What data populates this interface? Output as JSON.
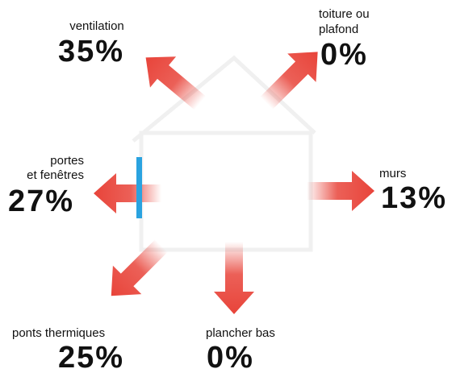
{
  "nodes": [
    {
      "label": [
        "ventilation"
      ],
      "value": "35%"
    },
    {
      "label": [
        "toiture ou",
        "plafond"
      ],
      "value": "0%"
    },
    {
      "label": [
        "portes",
        "et fenêtres"
      ],
      "value": "27%"
    },
    {
      "label": [
        "murs"
      ],
      "value": "13%"
    },
    {
      "label": [
        "ponts thermiques"
      ],
      "value": "25%"
    },
    {
      "label": [
        "plancher bas"
      ],
      "value": "0%"
    }
  ]
}
